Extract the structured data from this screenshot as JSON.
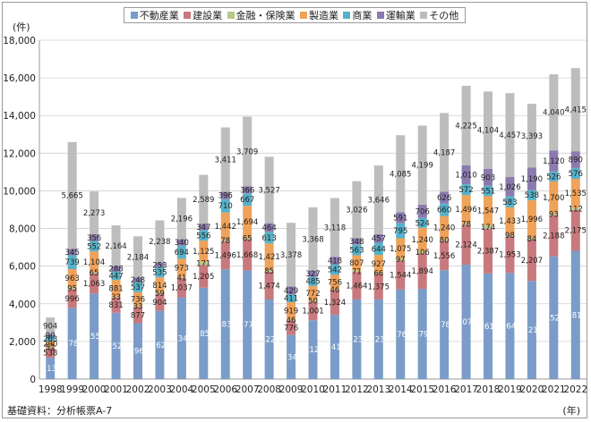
{
  "unit_label": "(件)",
  "x_unit_label": "(年)",
  "source": "基礎資料：分析帳票A-7",
  "chart_data": {
    "type": "bar",
    "stacked": true,
    "title": "",
    "xlabel": "(年)",
    "ylabel": "(件)",
    "ylim": [
      0,
      18000
    ],
    "yticks": [
      0,
      2000,
      4000,
      6000,
      8000,
      10000,
      12000,
      14000,
      16000,
      18000
    ],
    "ytick_labels": [
      "0",
      "2,000",
      "4,000",
      "6,000",
      "8,000",
      "10,000",
      "12,000",
      "14,000",
      "16,000",
      "18,000"
    ],
    "grid": true,
    "legend_position": "top-center",
    "categories": [
      "1998",
      "1999",
      "2000",
      "2001",
      "2002",
      "2003",
      "2004",
      "2005",
      "2006",
      "2007",
      "2008",
      "2009",
      "2010",
      "2011",
      "2012",
      "2013",
      "2014",
      "2015",
      "2016",
      "2017",
      "2018",
      "2019",
      "2020",
      "2021",
      "2022"
    ],
    "series": [
      {
        "name": "不動産業",
        "color": "#7b9cc8",
        "values": [
          1134,
          3787,
          4551,
          3521,
          2969,
          3628,
          4343,
          4854,
          5834,
          5774,
          4226,
          2343,
          3124,
          3411,
          4233,
          4230,
          4767,
          4795,
          5787,
          6077,
          5610,
          5640,
          5217,
          6520,
          6815
        ],
        "labels": [
          "1,134",
          "3,787",
          "4,551",
          "3,521",
          "2,969",
          "3,628",
          "4,343",
          "4,854",
          "5,834",
          "5,774",
          "4,226",
          "2,343",
          "3,124",
          "3,411",
          "4,233",
          "4,230",
          "4,767",
          "4,795",
          "5,787",
          "6,077",
          "5,610",
          "5,640",
          "5,217",
          "6,520",
          "6,815"
        ]
      },
      {
        "name": "建設業",
        "color": "#c8797d",
        "values": [
          538,
          996,
          1063,
          831,
          877,
          904,
          1037,
          1205,
          1496,
          1668,
          1474,
          776,
          1001,
          1324,
          1464,
          1375,
          1544,
          1894,
          1556,
          2124,
          2387,
          1953,
          2207,
          2188,
          2175
        ],
        "labels": [
          "538",
          "996",
          "1,063",
          "831",
          "877",
          "904",
          "1,037",
          "1,205",
          "1,496",
          "1,668",
          "1,474",
          "776",
          "1,001",
          "1,324",
          "1,464",
          "1,375",
          "1,544",
          "1,894",
          "1,556",
          "2,124",
          "2,387",
          "1,953",
          "2,207",
          "2,188",
          "2,175"
        ]
      },
      {
        "name": "金融・保険業",
        "color": "#b5c98a",
        "values": [
          51,
          95,
          65,
          33,
          33,
          59,
          41,
          171,
          78,
          65,
          85,
          46,
          50,
          46,
          71,
          66,
          97,
          106,
          80,
          78,
          174,
          98,
          84,
          93,
          112
        ],
        "labels": [
          "51",
          "95",
          "65",
          "33",
          "33",
          "59",
          "41",
          "171",
          "78",
          "65",
          "85",
          "46",
          "50",
          "46",
          "71",
          "66",
          "97",
          "106",
          "80",
          "78",
          "174",
          "98",
          "84",
          "93",
          "112"
        ]
      },
      {
        "name": "製造業",
        "color": "#eea25a",
        "values": [
          290,
          963,
          1104,
          881,
          736,
          814,
          973,
          1125,
          1442,
          1694,
          1421,
          919,
          772,
          756,
          807,
          927,
          1075,
          1240,
          1240,
          1496,
          1547,
          1433,
          1996,
          1700,
          1535
        ],
        "labels": [
          "290",
          "963",
          "1,104",
          "881",
          "736",
          "814",
          "973",
          "1,125",
          "1,442",
          "1,694",
          "1,421",
          "919",
          "772",
          "756",
          "807",
          "927",
          "1,075",
          "1,240",
          "1,240",
          "1,496",
          "1,547",
          "1,433",
          "1,996",
          "1,700",
          "1,535"
        ]
      },
      {
        "name": "商業",
        "color": "#56b2c8",
        "values": [
          263,
          739,
          552,
          447,
          537,
          535,
          694,
          556,
          710,
          667,
          613,
          411,
          485,
          542,
          563,
          644,
          795,
          524,
          660,
          572,
          551,
          583,
          538,
          526,
          576
        ],
        "labels": [
          "263",
          "739",
          "552",
          "447",
          "537",
          "535",
          "694",
          "556",
          "710",
          "667",
          "613",
          "411",
          "485",
          "542",
          "563",
          "644",
          "795",
          "524",
          "660",
          "572",
          "551",
          "583",
          "538",
          "526",
          "576"
        ]
      },
      {
        "name": "運輸業",
        "color": "#8c7aae",
        "values": [
          90,
          345,
          356,
          288,
          248,
          253,
          340,
          347,
          396,
          366,
          464,
          429,
          327,
          418,
          348,
          457,
          591,
          706,
          626,
          1010,
          903,
          1026,
          1190,
          1120,
          890
        ],
        "labels": [
          "90",
          "345",
          "356",
          "288",
          "248",
          "253",
          "340",
          "347",
          "396",
          "366",
          "464",
          "429",
          "327",
          "418",
          "348",
          "457",
          "591",
          "706",
          "626",
          "1,010",
          "903",
          "1,026",
          "1,190",
          "1,120",
          "890"
        ]
      },
      {
        "name": "その他",
        "color": "#bdbdbd",
        "values": [
          904,
          5665,
          2273,
          2164,
          2184,
          2238,
          2196,
          2589,
          3411,
          3709,
          3527,
          3378,
          3368,
          3118,
          3026,
          3646,
          4085,
          4199,
          4187,
          4225,
          4104,
          4457,
          3393,
          4040,
          4415
        ],
        "labels": [
          "904",
          "5,665",
          "2,273",
          "2,164",
          "2,184",
          "2,238",
          "2,196",
          "2,589",
          "3,411",
          "3,709",
          "3,527",
          "3,378",
          "3,368",
          "3,118",
          "3,026",
          "3,646",
          "4,085",
          "4,199",
          "4,187",
          "4,225",
          "4,104",
          "4,457",
          "3,393",
          "4,040",
          "4,415"
        ]
      }
    ]
  }
}
